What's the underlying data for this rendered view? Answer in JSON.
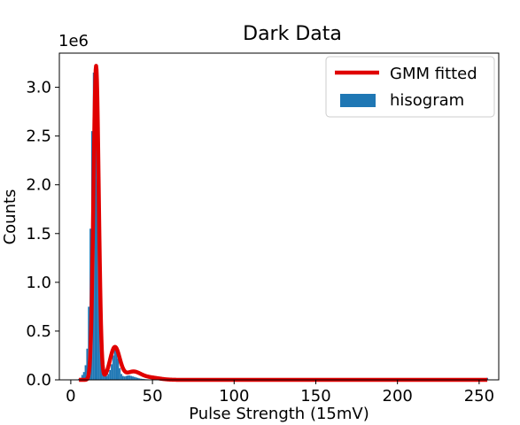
{
  "chart_data": {
    "type": "bar",
    "title": "Dark Data",
    "xlabel": "Pulse Strength (15mV)",
    "ylabel": "Counts",
    "y_offset_label": "1e6",
    "xlim": [
      -7,
      262
    ],
    "ylim": [
      0,
      3.35
    ],
    "x_ticks": [
      0,
      50,
      100,
      150,
      200,
      250
    ],
    "y_ticks": [
      0.0,
      0.5,
      1.0,
      1.5,
      2.0,
      2.5,
      3.0
    ],
    "y_tick_labels": [
      "0.0",
      "0.5",
      "1.0",
      "1.5",
      "2.0",
      "2.5",
      "3.0"
    ],
    "y_units_scale": 1000000,
    "legend_position": "upper-right",
    "grid": false,
    "series": [
      {
        "name": "hisogram",
        "kind": "histogram",
        "color": "#1f77b4",
        "x": [
          5,
          6,
          7,
          8,
          9,
          10,
          11,
          12,
          13,
          14,
          15,
          16,
          17,
          18,
          19,
          20,
          21,
          22,
          23,
          24,
          25,
          26,
          27,
          28,
          29,
          30,
          31,
          32,
          33,
          34,
          35,
          36,
          37,
          38,
          39,
          40,
          41,
          42,
          43,
          44,
          45,
          46,
          47,
          48,
          49,
          50,
          255
        ],
        "values": [
          0.01,
          0.02,
          0.05,
          0.08,
          0.15,
          0.32,
          0.75,
          1.55,
          2.55,
          3.15,
          3.22,
          3.2,
          2.55,
          1.05,
          0.35,
          0.1,
          0.04,
          0.04,
          0.06,
          0.1,
          0.16,
          0.25,
          0.33,
          0.32,
          0.22,
          0.12,
          0.06,
          0.04,
          0.035,
          0.04,
          0.045,
          0.045,
          0.04,
          0.035,
          0.03,
          0.025,
          0.02,
          0.015,
          0.012,
          0.01,
          0.008,
          0.006,
          0.005,
          0.004,
          0.003,
          0.002,
          0.02
        ]
      },
      {
        "name": "GMM fitted",
        "kind": "line",
        "color": "#e00000",
        "components": [
          {
            "weight": 0.72,
            "mean": 15.5,
            "sd": 1.6
          },
          {
            "weight": 0.14,
            "mean": 27.0,
            "sd": 3.0
          },
          {
            "weight": 0.05,
            "mean": 38.0,
            "sd": 4.5
          },
          {
            "weight": 0.02,
            "mean": 48.0,
            "sd": 6.0
          }
        ]
      }
    ]
  }
}
